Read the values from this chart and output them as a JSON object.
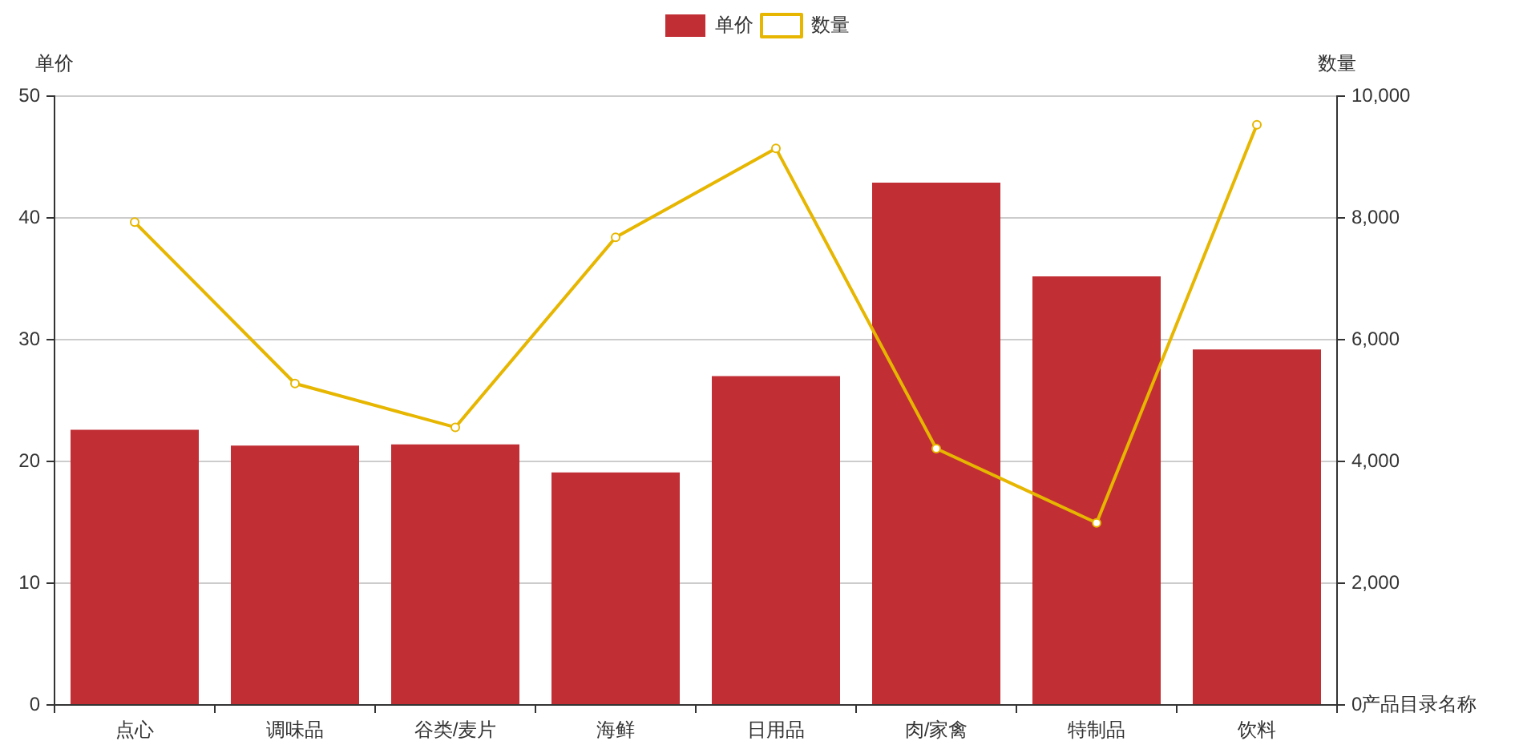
{
  "chart_data": {
    "type": "bar",
    "xlabel": "产品目录名称",
    "ylabel": "单价",
    "y2label": "数量",
    "categories": [
      "点心",
      "调味品",
      "谷类/麦片",
      "海鲜",
      "日用品",
      "肉/家禽",
      "特制品",
      "饮料"
    ],
    "series": [
      {
        "name": "单价",
        "color": "#c12e34",
        "values": [
          22.6,
          21.3,
          21.4,
          19.1,
          27.0,
          42.9,
          35.2,
          29.2
        ]
      },
      {
        "name": "数量",
        "type": "line",
        "axis": "y2",
        "color": "#e6b600",
        "values": [
          7930,
          5280,
          4560,
          7680,
          9140,
          4210,
          2990,
          9530
        ]
      }
    ],
    "ylim": [
      0,
      50
    ],
    "yticks": [
      0,
      10,
      20,
      30,
      40,
      50
    ],
    "y2lim": [
      0,
      10000
    ],
    "y2ticks": [
      0,
      {
        "value": 2000,
        "label": "2,000"
      },
      {
        "value": 4000,
        "label": "4,000"
      },
      {
        "value": 6000,
        "label": "6,000"
      },
      {
        "value": 8000,
        "label": "8,000"
      },
      {
        "value": 10000,
        "label": "10,000"
      }
    ],
    "grid": "y",
    "legend": "top",
    "marker": "circle"
  }
}
